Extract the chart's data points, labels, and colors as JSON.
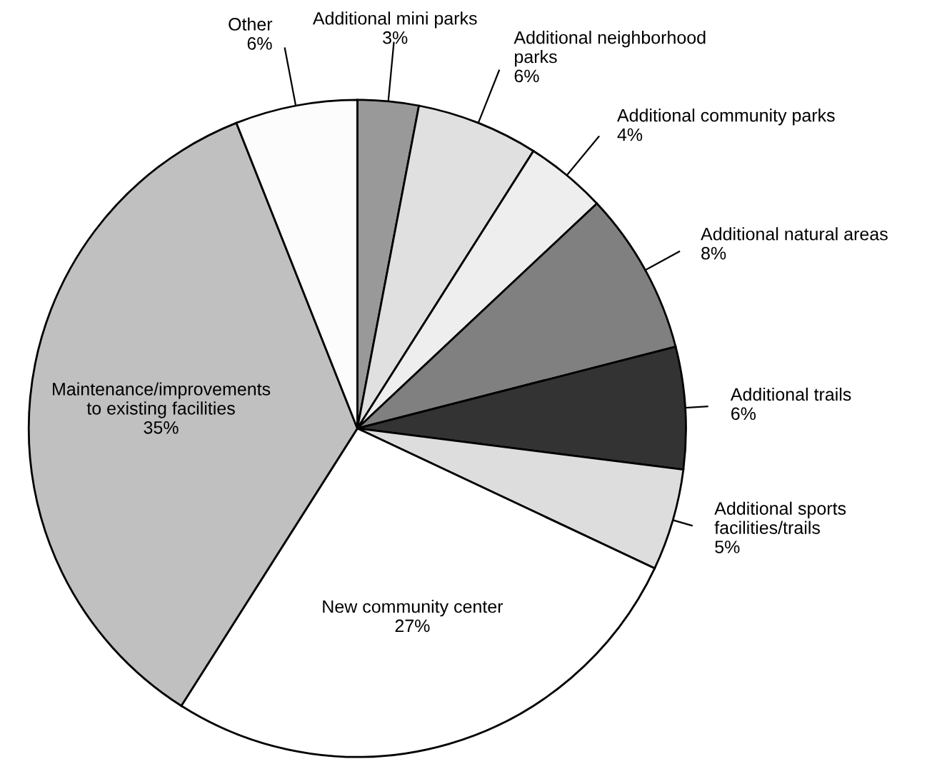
{
  "chart_data": {
    "type": "pie",
    "categories": [
      "Additional mini parks",
      "Additional neighborhood\nparks",
      "Additional community parks",
      "Additional natural areas",
      "Additional trails",
      "Additional sports\nfacilities/trails",
      "New community center",
      "Maintenance/improvements\nto existing facilities",
      "Other"
    ],
    "values": [
      3,
      6,
      4,
      8,
      6,
      5,
      27,
      35,
      6
    ],
    "colors": [
      "#999999",
      "#e0e0e0",
      "#eeeeee",
      "#808080",
      "#333333",
      "#dddddd",
      "#ffffff",
      "#c0c0c0",
      "#fcfcfc"
    ],
    "value_labels": [
      "3%",
      "6%",
      "4%",
      "8%",
      "6%",
      "5%",
      "27%",
      "35%",
      "6%"
    ]
  }
}
